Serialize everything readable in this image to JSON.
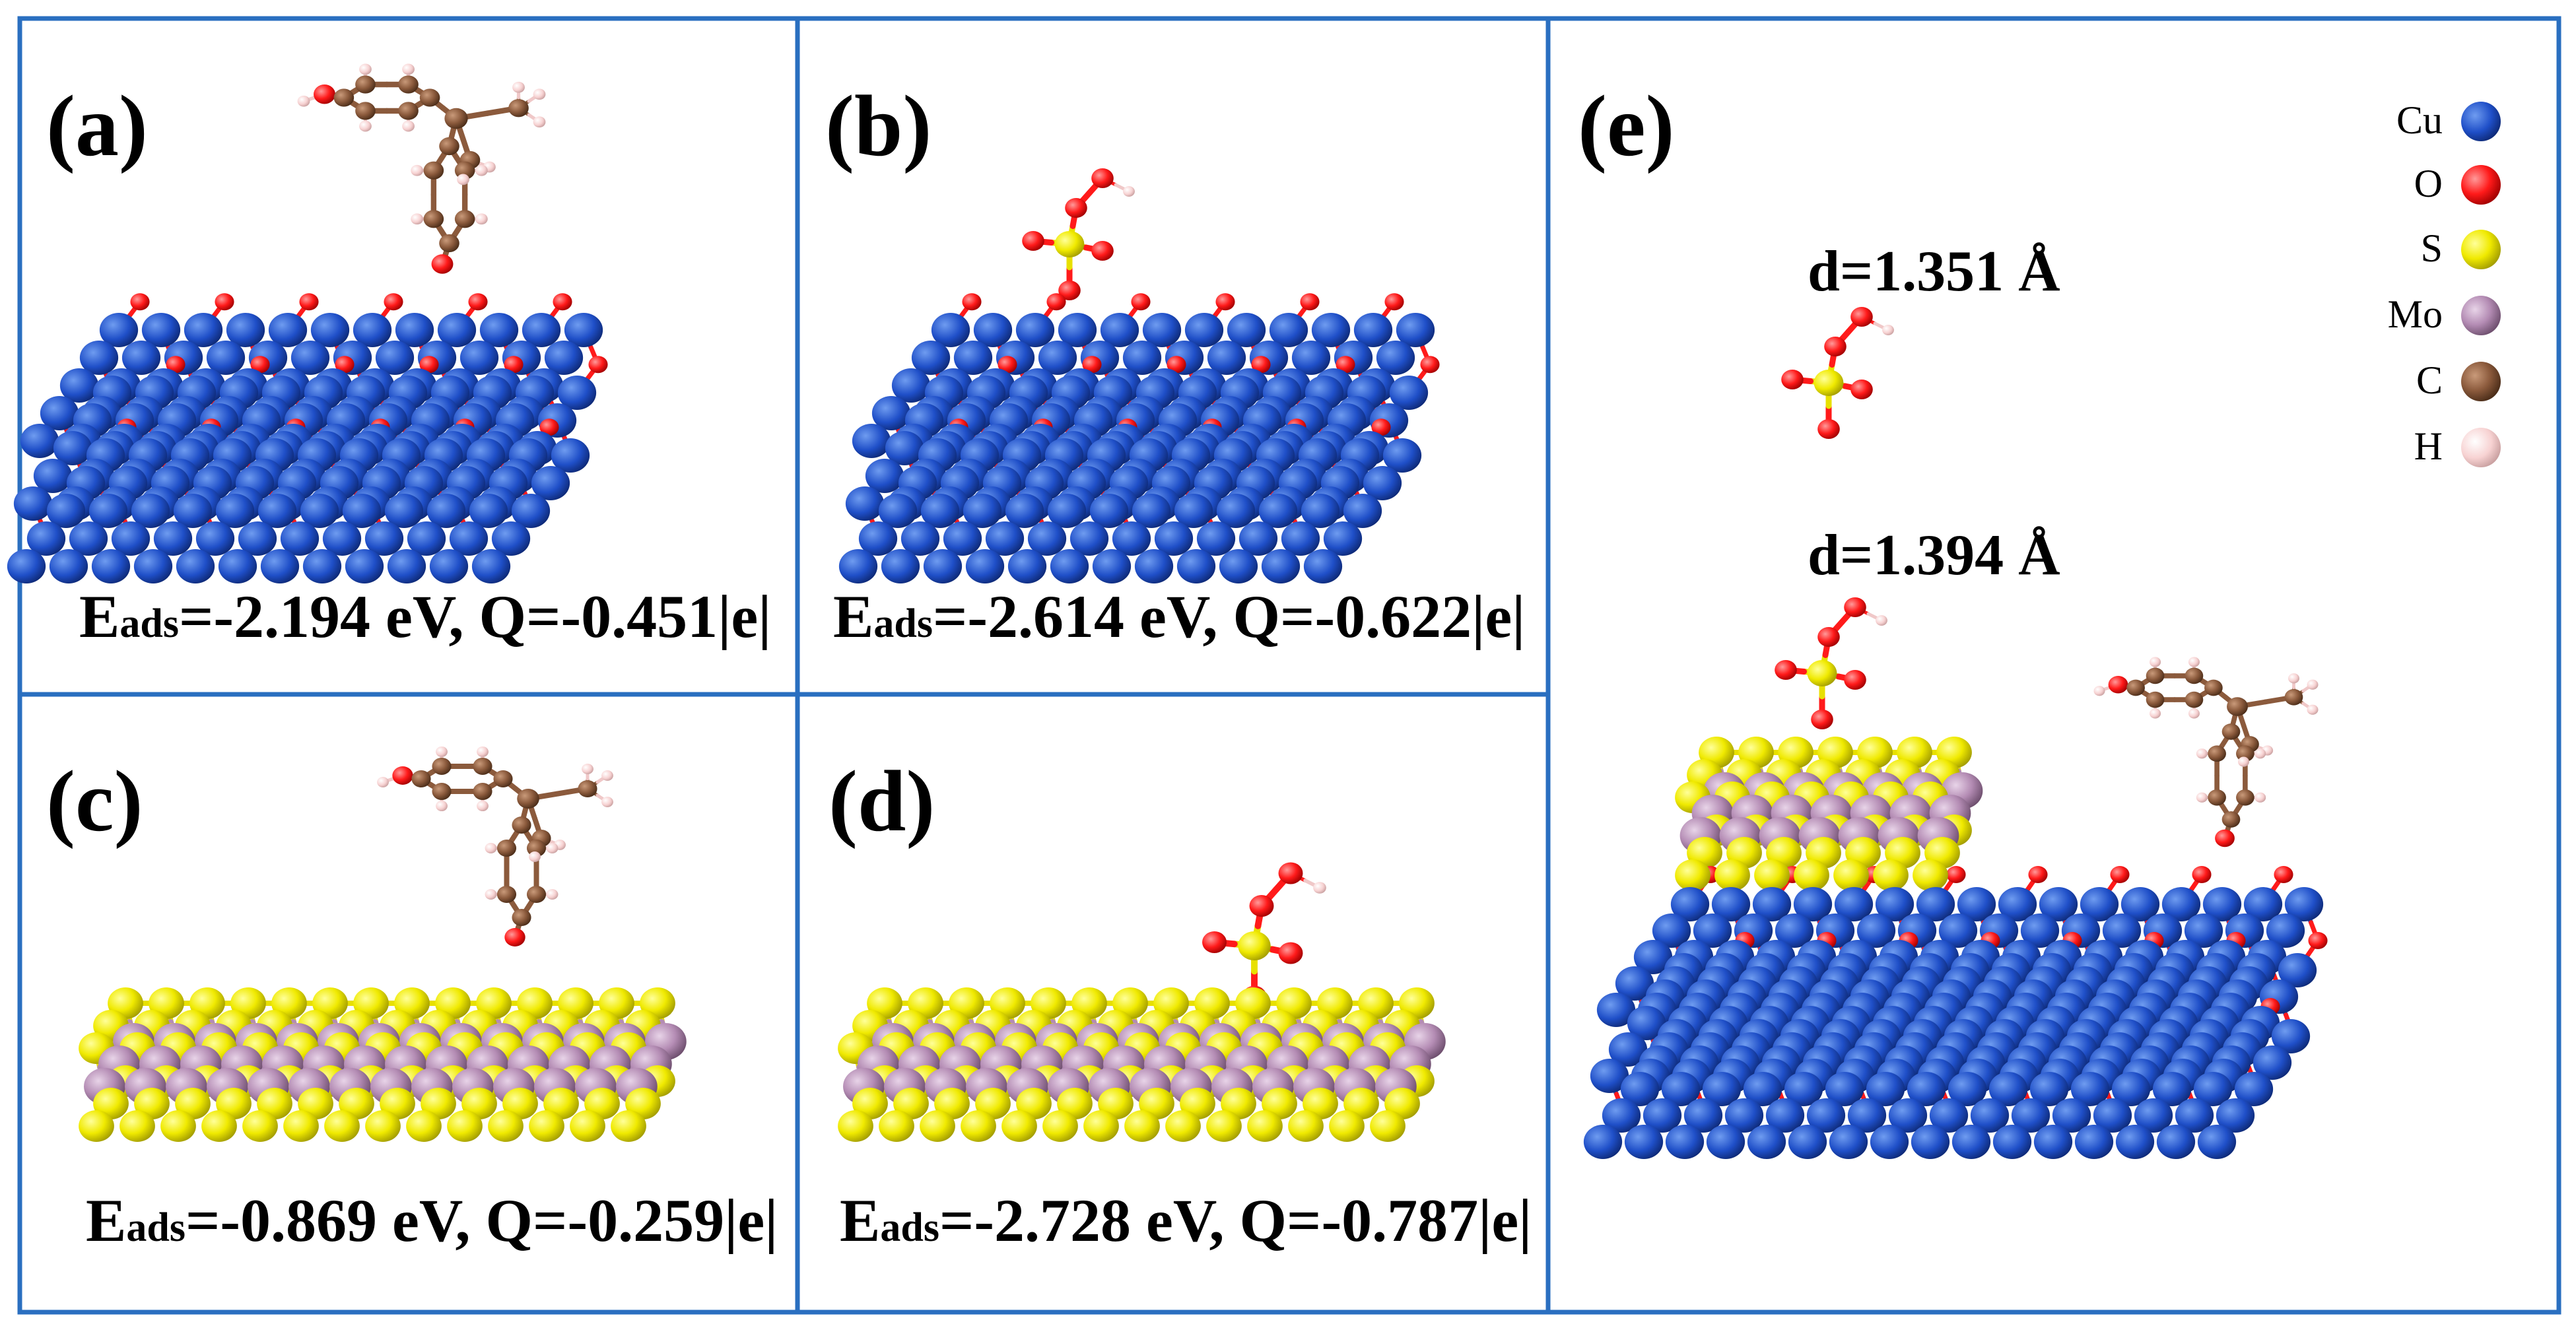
{
  "panels": [
    {
      "id": "a",
      "label": "(a)",
      "caption_prefix": "E",
      "caption_sub": "ads",
      "caption_rest": "=-2.194 eV, Q=-0.451|e|",
      "substrate": "Cu2O",
      "adsorbate": "bisphenol"
    },
    {
      "id": "b",
      "label": "(b)",
      "caption_prefix": "E",
      "caption_sub": "ads",
      "caption_rest": "=-2.614 eV, Q=-0.622|e|",
      "substrate": "Cu2O",
      "adsorbate": "peroxymonosulfate"
    },
    {
      "id": "c",
      "label": "(c)",
      "caption_prefix": "E",
      "caption_sub": "ads",
      "caption_rest": "=-0.869 eV, Q=-0.259|e|",
      "substrate": "MoS2",
      "adsorbate": "bisphenol"
    },
    {
      "id": "d",
      "label": "(d)",
      "caption_prefix": "E",
      "caption_sub": "ads",
      "caption_rest": "=-2.728 eV, Q=-0.787|e|",
      "substrate": "MoS2",
      "adsorbate": "peroxymonosulfate"
    },
    {
      "id": "e",
      "label": "(e)"
    }
  ],
  "distances": [
    "d=1.351 Å",
    "d=1.394 Å"
  ],
  "legend": [
    {
      "label": "Cu",
      "color": "#1f4fa8"
    },
    {
      "label": "O",
      "color": "#ff1a1a"
    },
    {
      "label": "S",
      "color": "#e8e000"
    },
    {
      "label": "Mo",
      "color": "#b48cb4"
    },
    {
      "label": "C",
      "color": "#8b5a3c"
    },
    {
      "label": "H",
      "color": "#f7d2d2"
    }
  ]
}
